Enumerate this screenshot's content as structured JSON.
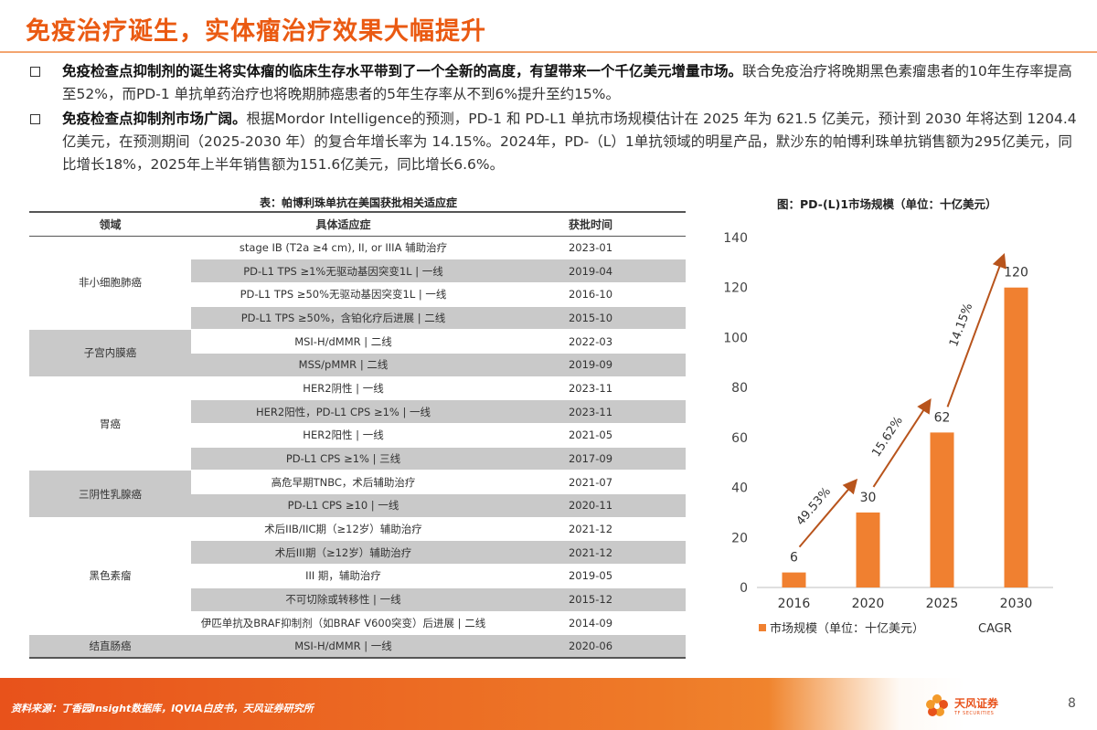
{
  "title": "免疫治疗诞生，实体瘤治疗效果大幅提升",
  "bullets": [
    {
      "bold": "免疫检查点抑制剂的诞生将实体瘤的临床生存水平带到了一个全新的高度，有望带来一个千亿美元增量市场。",
      "text": "联合免疫治疗将晚期黑色素瘤患者的10年生存率提高至52%，而PD-1 单抗单药治疗也将晚期肺癌患者的5年生存率从不到6%提升至约15%。"
    },
    {
      "bold": "免疫检查点抑制剂市场广阔。",
      "text": "根据Mordor Intelligence的预测，PD-1 和 PD-L1 单抗市场规模估计在 2025 年为 621.5 亿美元，预计到 2030 年将达到 1204.4 亿美元，在预测期间（2025-2030 年）的复合年增长率为 14.15%。2024年，PD-（L）1单抗领域的明星产品，默沙东的帕博利珠单抗销售额为295亿美元，同比增长18%，2025年上半年销售额为151.6亿美元，同比增长6.6%。"
    }
  ],
  "table": {
    "caption": "表：帕博利珠单抗在美国获批相关适应症",
    "headers": [
      "领域",
      "具体适应症",
      "获批时间"
    ],
    "groups": [
      {
        "name": "非小细胞肺癌",
        "rows": [
          [
            "stage IB (T2a ≥4 cm), II, or IIIA 辅助治疗",
            "2023-01"
          ],
          [
            "PD-L1 TPS ≥1%无驱动基因突变1L | 一线",
            "2019-04"
          ],
          [
            "PD-L1 TPS ≥50%无驱动基因突变1L | 一线",
            "2016-10"
          ],
          [
            "PD-L1 TPS ≥50%，含铂化疗后进展 | 二线",
            "2015-10"
          ]
        ]
      },
      {
        "name": "子宫内膜癌",
        "rows": [
          [
            "MSI-H/dMMR | 二线",
            "2022-03"
          ],
          [
            "MSS/pMMR | 二线",
            "2019-09"
          ]
        ]
      },
      {
        "name": "胃癌",
        "rows": [
          [
            "HER2阴性 | 一线",
            "2023-11"
          ],
          [
            "HER2阳性，PD-L1 CPS ≥1% | 一线",
            "2023-11"
          ],
          [
            "HER2阳性 | 一线",
            "2021-05"
          ],
          [
            "PD-L1 CPS ≥1% | 三线",
            "2017-09"
          ]
        ]
      },
      {
        "name": "三阴性乳腺癌",
        "rows": [
          [
            "高危早期TNBC，术后辅助治疗",
            "2021-07"
          ],
          [
            "PD-L1 CPS ≥10 | 一线",
            "2020-11"
          ]
        ]
      },
      {
        "name": "黑色素瘤",
        "rows": [
          [
            "术后IIB/IIC期（≥12岁）辅助治疗",
            "2021-12"
          ],
          [
            "术后III期（≥12岁）辅助治疗",
            "2021-12"
          ],
          [
            "III 期，辅助治疗",
            "2019-05"
          ],
          [
            "不可切除或转移性 | 一线",
            "2015-12"
          ],
          [
            "伊匹单抗及BRAF抑制剂（如BRAF V600突变）后进展 | 二线",
            "2014-09"
          ]
        ]
      },
      {
        "name": "结直肠癌",
        "rows": [
          [
            "MSI-H/dMMR | 一线",
            "2020-06"
          ]
        ]
      }
    ]
  },
  "chart_data": {
    "type": "bar",
    "title": "图：PD-(L)1市场规模（单位：十亿美元）",
    "categories": [
      "2016",
      "2020",
      "2025",
      "2030"
    ],
    "series": [
      {
        "name": "市场规模（单位：十亿美元）",
        "values": [
          6,
          30,
          62,
          120
        ]
      }
    ],
    "cagr": [
      "49.53%",
      "15.62%",
      "14.15%"
    ],
    "cagr_legend": "CAGR",
    "ylim": [
      0,
      140
    ],
    "yticks": [
      0,
      20,
      40,
      60,
      80,
      100,
      120,
      140
    ],
    "bar_color": "#f08030",
    "arrow_color": "#b8541c",
    "legend_position": "bottom"
  },
  "footer": {
    "source": "资料来源：丁香园Insight数据库，IQVIA白皮书，天风证券研究所",
    "logo_cn": "天风证券",
    "logo_en": "TF SECURITIES",
    "page": "8"
  },
  "colors": {
    "accent": "#ea5a12",
    "row_gray": "#c9c9c9"
  }
}
